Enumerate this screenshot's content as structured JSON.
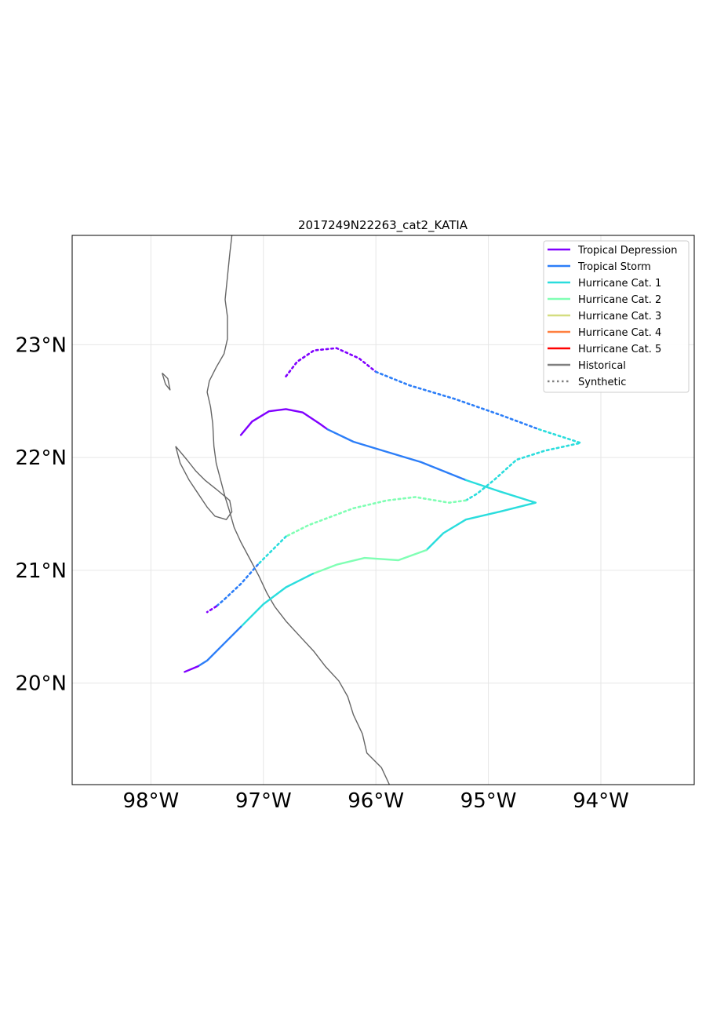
{
  "title": "2017249N22263_cat2_KATIA",
  "map": {
    "lon_range": [
      -98.7,
      -93.17
    ],
    "lat_range": [
      19.1,
      23.97
    ],
    "grid": true,
    "coastline_color": "#666666",
    "x_ticks": [
      {
        "lon": -98,
        "label": "98°W"
      },
      {
        "lon": -97,
        "label": "97°W"
      },
      {
        "lon": -96,
        "label": "96°W"
      },
      {
        "lon": -95,
        "label": "95°W"
      },
      {
        "lon": -94,
        "label": "94°W"
      }
    ],
    "y_ticks": [
      {
        "lat": 20,
        "label": "20°N"
      },
      {
        "lat": 21,
        "label": "21°N"
      },
      {
        "lat": 22,
        "label": "22°N"
      },
      {
        "lat": 23,
        "label": "23°N"
      }
    ],
    "coastline": [
      [
        -97.28,
        23.97
      ],
      [
        -97.3,
        23.8
      ],
      [
        -97.32,
        23.6
      ],
      [
        -97.34,
        23.4
      ],
      [
        -97.32,
        23.25
      ],
      [
        -97.32,
        23.05
      ],
      [
        -97.35,
        22.92
      ],
      [
        -97.42,
        22.8
      ],
      [
        -97.48,
        22.68
      ],
      [
        -97.5,
        22.58
      ],
      [
        -97.47,
        22.45
      ],
      [
        -97.45,
        22.3
      ],
      [
        -97.44,
        22.1
      ],
      [
        -97.42,
        21.95
      ],
      [
        -97.38,
        21.8
      ],
      [
        -97.34,
        21.65
      ],
      [
        -97.3,
        21.52
      ],
      [
        -97.26,
        21.38
      ],
      [
        -97.2,
        21.25
      ],
      [
        -97.12,
        21.1
      ],
      [
        -97.04,
        20.95
      ],
      [
        -96.97,
        20.8
      ],
      [
        -96.9,
        20.68
      ],
      [
        -96.8,
        20.55
      ],
      [
        -96.68,
        20.42
      ],
      [
        -96.55,
        20.28
      ],
      [
        -96.45,
        20.15
      ],
      [
        -96.33,
        20.02
      ],
      [
        -96.25,
        19.88
      ],
      [
        -96.2,
        19.72
      ],
      [
        -96.12,
        19.55
      ],
      [
        -96.08,
        19.38
      ],
      [
        -95.95,
        19.25
      ],
      [
        -95.88,
        19.1
      ]
    ],
    "lagoon": [
      [
        -97.78,
        22.1
      ],
      [
        -97.68,
        21.98
      ],
      [
        -97.6,
        21.88
      ],
      [
        -97.52,
        21.8
      ],
      [
        -97.42,
        21.72
      ],
      [
        -97.3,
        21.62
      ],
      [
        -97.28,
        21.52
      ],
      [
        -97.33,
        21.45
      ],
      [
        -97.43,
        21.48
      ],
      [
        -97.5,
        21.56
      ],
      [
        -97.58,
        21.68
      ],
      [
        -97.66,
        21.8
      ],
      [
        -97.74,
        21.95
      ],
      [
        -97.78,
        22.1
      ]
    ],
    "island": [
      [
        -97.9,
        22.75
      ],
      [
        -97.85,
        22.7
      ],
      [
        -97.83,
        22.6
      ],
      [
        -97.87,
        22.65
      ],
      [
        -97.9,
        22.75
      ]
    ]
  },
  "legend": {
    "position": "top-right",
    "entries": [
      {
        "label": "Tropical Depression",
        "color": "#8000ff",
        "style": "solid"
      },
      {
        "label": "Tropical Storm",
        "color": "#2c7ef8",
        "style": "solid"
      },
      {
        "label": "Hurricane Cat. 1",
        "color": "#2adddd",
        "style": "solid"
      },
      {
        "label": "Hurricane Cat. 2",
        "color": "#80ffb4",
        "style": "solid"
      },
      {
        "label": "Hurricane Cat. 3",
        "color": "#d4dd80",
        "style": "solid"
      },
      {
        "label": "Hurricane Cat. 4",
        "color": "#ff8040",
        "style": "solid"
      },
      {
        "label": "Hurricane Cat. 5",
        "color": "#ff0000",
        "style": "solid"
      },
      {
        "label": "Historical",
        "color": "#808080",
        "style": "solid"
      },
      {
        "label": "Synthetic",
        "color": "#808080",
        "style": "dotted"
      }
    ]
  },
  "chart_data": {
    "type": "line",
    "tracks": [
      {
        "kind": "historical",
        "segments": [
          {
            "category": "Tropical Depression",
            "color": "#8000ff",
            "points": [
              [
                -97.2,
                22.2
              ],
              [
                -97.1,
                22.32
              ],
              [
                -96.95,
                22.41
              ],
              [
                -96.8,
                22.43
              ],
              [
                -96.65,
                22.4
              ],
              [
                -96.5,
                22.3
              ],
              [
                -96.43,
                22.25
              ]
            ]
          },
          {
            "category": "Tropical Storm",
            "color": "#2c7ef8",
            "points": [
              [
                -96.43,
                22.25
              ],
              [
                -96.2,
                22.14
              ],
              [
                -95.9,
                22.05
              ],
              [
                -95.6,
                21.96
              ],
              [
                -95.2,
                21.8
              ]
            ]
          },
          {
            "category": "Hurricane Cat. 1",
            "color": "#2adddd",
            "points": [
              [
                -95.2,
                21.8
              ],
              [
                -94.9,
                21.7
              ],
              [
                -94.58,
                21.6
              ],
              [
                -94.9,
                21.52
              ],
              [
                -95.2,
                21.45
              ],
              [
                -95.4,
                21.33
              ],
              [
                -95.55,
                21.18
              ]
            ]
          },
          {
            "category": "Hurricane Cat. 2",
            "color": "#80ffb4",
            "points": [
              [
                -95.55,
                21.18
              ],
              [
                -95.8,
                21.09
              ],
              [
                -96.1,
                21.11
              ],
              [
                -96.35,
                21.05
              ],
              [
                -96.56,
                20.97
              ]
            ]
          },
          {
            "category": "Hurricane Cat. 1",
            "color": "#2adddd",
            "points": [
              [
                -96.56,
                20.97
              ],
              [
                -96.8,
                20.85
              ],
              [
                -97.0,
                20.7
              ],
              [
                -97.2,
                20.5
              ]
            ]
          },
          {
            "category": "Tropical Storm",
            "color": "#2c7ef8",
            "points": [
              [
                -97.2,
                20.5
              ],
              [
                -97.35,
                20.35
              ],
              [
                -97.5,
                20.2
              ],
              [
                -97.58,
                20.15
              ]
            ]
          },
          {
            "category": "Tropical Depression",
            "color": "#8000ff",
            "points": [
              [
                -97.58,
                20.15
              ],
              [
                -97.7,
                20.1
              ]
            ]
          }
        ]
      },
      {
        "kind": "synthetic",
        "segments": [
          {
            "category": "Tropical Depression",
            "color": "#8000ff",
            "points": [
              [
                -96.8,
                22.72
              ],
              [
                -96.7,
                22.85
              ],
              [
                -96.55,
                22.95
              ],
              [
                -96.35,
                22.97
              ],
              [
                -96.15,
                22.88
              ],
              [
                -96.0,
                22.76
              ]
            ]
          },
          {
            "category": "Tropical Storm",
            "color": "#2c7ef8",
            "points": [
              [
                -96.0,
                22.76
              ],
              [
                -95.7,
                22.64
              ],
              [
                -95.3,
                22.52
              ],
              [
                -94.9,
                22.38
              ],
              [
                -94.55,
                22.25
              ]
            ]
          },
          {
            "category": "Hurricane Cat. 1",
            "color": "#2adddd",
            "points": [
              [
                -94.55,
                22.25
              ],
              [
                -94.18,
                22.13
              ],
              [
                -94.5,
                22.06
              ],
              [
                -94.75,
                21.98
              ],
              [
                -94.95,
                21.8
              ],
              [
                -95.1,
                21.68
              ],
              [
                -95.2,
                21.62
              ]
            ]
          },
          {
            "category": "Hurricane Cat. 2",
            "color": "#80ffb4",
            "points": [
              [
                -95.2,
                21.62
              ],
              [
                -95.35,
                21.6
              ],
              [
                -95.65,
                21.65
              ],
              [
                -95.9,
                21.62
              ],
              [
                -96.2,
                21.55
              ],
              [
                -96.6,
                21.4
              ],
              [
                -96.8,
                21.3
              ]
            ]
          },
          {
            "category": "Hurricane Cat. 1",
            "color": "#2adddd",
            "points": [
              [
                -96.8,
                21.3
              ],
              [
                -96.95,
                21.15
              ],
              [
                -97.05,
                21.05
              ]
            ]
          },
          {
            "category": "Tropical Storm",
            "color": "#2c7ef8",
            "points": [
              [
                -97.05,
                21.05
              ],
              [
                -97.2,
                20.88
              ],
              [
                -97.35,
                20.74
              ],
              [
                -97.42,
                20.68
              ]
            ]
          },
          {
            "category": "Tropical Depression",
            "color": "#8000ff",
            "points": [
              [
                -97.42,
                20.68
              ],
              [
                -97.5,
                20.63
              ]
            ]
          }
        ]
      }
    ]
  }
}
